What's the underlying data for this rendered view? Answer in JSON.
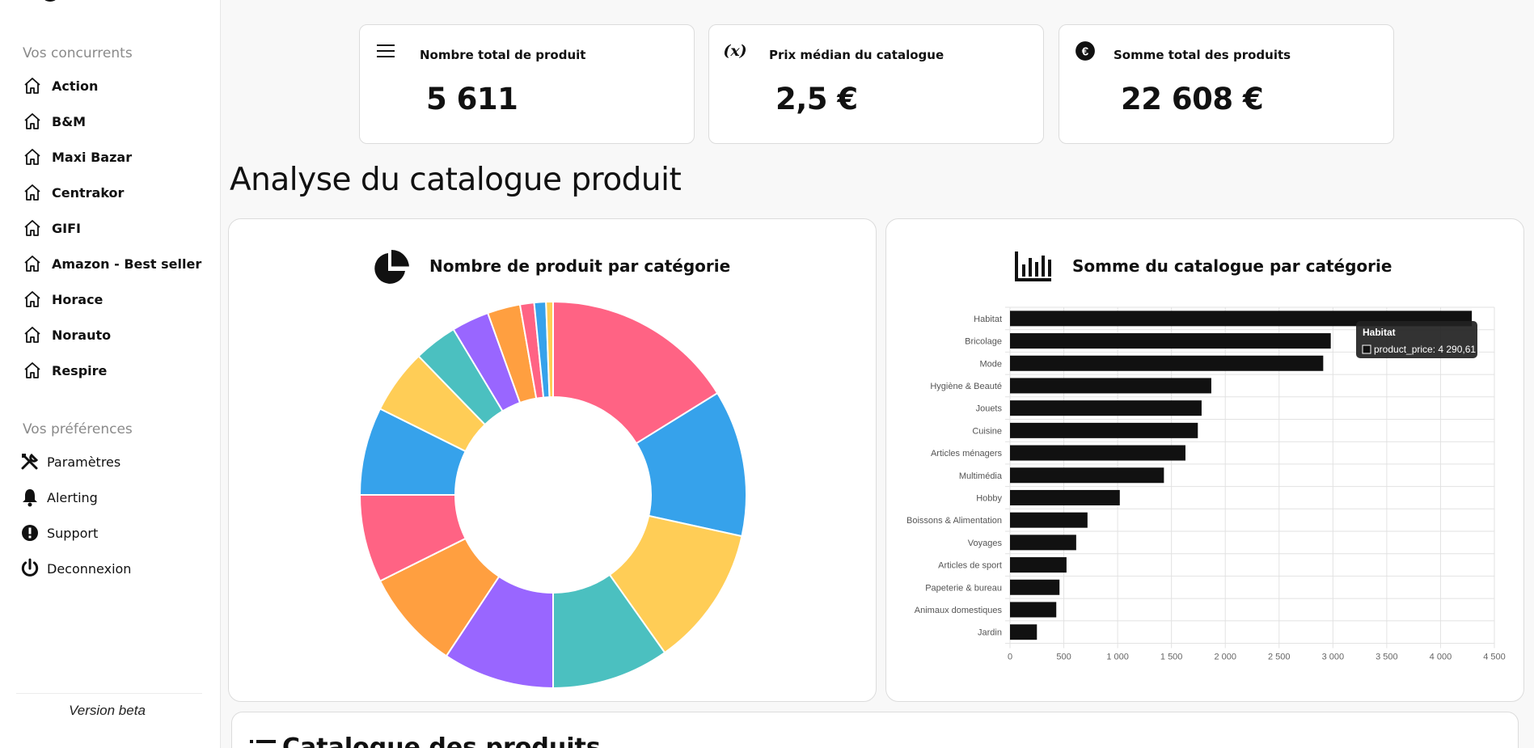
{
  "sidebar": {
    "competitors_title": "Vos concurrents",
    "competitors": [
      "Action",
      "B&M",
      "Maxi Bazar",
      "Centrakor",
      "GIFI",
      "Amazon - Best seller",
      "Horace",
      "Norauto",
      "Respire"
    ],
    "preferences_title": "Vos préférences",
    "preferences": [
      {
        "label": "Paramètres",
        "icon": "tools-icon"
      },
      {
        "label": "Alerting",
        "icon": "bell-icon"
      },
      {
        "label": "Support",
        "icon": "exclamation-icon"
      },
      {
        "label": "Deconnexion",
        "icon": "power-icon"
      }
    ],
    "version": "Version beta"
  },
  "kpis": [
    {
      "title": "Nombre total de produit",
      "value": "5 611",
      "icon": "menu-lines-icon"
    },
    {
      "title": "Prix médian du catalogue",
      "value": "2,5 €",
      "icon": "function-x-icon"
    },
    {
      "title": "Somme total des produits",
      "value": "22 608 €",
      "icon": "euro-icon"
    }
  ],
  "heading": "Analyse du catalogue produit",
  "pie_panel": {
    "title": "Nombre de produit par catégorie",
    "icon": "pie-chart-icon"
  },
  "bar_panel": {
    "title": "Somme du catalogue par catégorie",
    "icon": "bar-chart-icon"
  },
  "catalogue_title": "Catalogue des produits",
  "colors": {
    "accent": "#111111",
    "pink": "#ff6384",
    "blue": "#36a2eb",
    "yellow": "#ffcd56",
    "teal": "#4bc0c0",
    "purple": "#9966ff",
    "orange": "#ff9f40"
  },
  "chart_data": [
    {
      "type": "pie",
      "title": "Nombre de produit par catégorie",
      "donut": true,
      "values": [
        16.5,
        12.5,
        12,
        10,
        9.5,
        8.5,
        7.5,
        7.5,
        5.5,
        3.7,
        3.2,
        2.8,
        1.2,
        1.0,
        0.6
      ],
      "colors": [
        "#ff6384",
        "#36a2eb",
        "#ffcd56",
        "#4bc0c0",
        "#9966ff",
        "#ff9f40",
        "#ff6384",
        "#36a2eb",
        "#ffcd56",
        "#4bc0c0",
        "#9966ff",
        "#ff9f40",
        "#ff6384",
        "#36a2eb",
        "#ffcd56"
      ]
    },
    {
      "type": "bar",
      "orientation": "horizontal",
      "title": "Somme du catalogue par catégorie",
      "categories": [
        "Habitat",
        "Bricolage",
        "Mode",
        "Hygiène & Beauté",
        "Jouets",
        "Cuisine",
        "Articles ménagers",
        "Multimédia",
        "Hobby",
        "Boissons & Alimentation",
        "Voyages",
        "Articles de sport",
        "Papeterie & bureau",
        "Animaux domestiques",
        "Jardin"
      ],
      "values": [
        4290.61,
        2980,
        2910,
        1870,
        1780,
        1745,
        1630,
        1430,
        1020,
        720,
        615,
        525,
        460,
        430,
        250
      ],
      "xlim": [
        0,
        4500
      ],
      "xticks": [
        0,
        500,
        1000,
        1500,
        2000,
        2500,
        3000,
        3500,
        4000,
        4500
      ],
      "xtick_labels": [
        "0",
        "500",
        "1 000",
        "1 500",
        "2 000",
        "2 500",
        "3 000",
        "3 500",
        "4 000",
        "4 500"
      ],
      "grid": true,
      "tooltip": {
        "title": "Habitat",
        "label": "product_price: 4 290,61"
      }
    }
  ]
}
